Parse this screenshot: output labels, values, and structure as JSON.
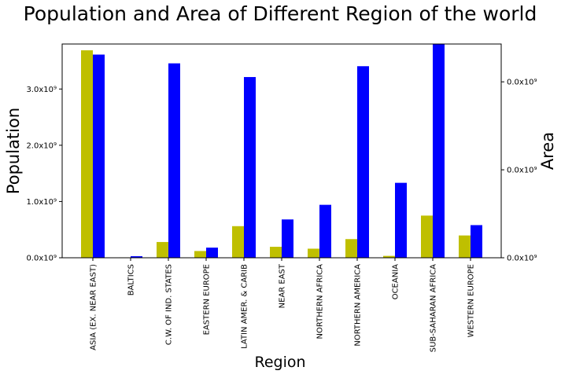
{
  "chart_data": {
    "type": "bar",
    "title": "Population and Area of Different Region of the world",
    "xlabel": "Region",
    "ylabel_left": "Population",
    "ylabel_right": "Area",
    "categories": [
      "ASIA (EX. NEAR EAST)",
      "BALTICS",
      "C.W. OF IND. STATES",
      "EASTERN EUROPE",
      "LATIN AMER. & CARIB",
      "NEAR EAST",
      "NORTHERN AFRICA",
      "NORTHERN AMERICA",
      "OCEANIA",
      "SUB-SAHARAN AFRICA",
      "WESTERN EUROPE"
    ],
    "series": [
      {
        "name": "Population",
        "axis": "left",
        "color": "#bfbf00",
        "values": [
          3687982236,
          7184974,
          280081548,
          119914717,
          561824599,
          195068377,
          161407133,
          331672307,
          33131662,
          749437000,
          396339998
        ]
      },
      {
        "name": "Area",
        "axis": "right",
        "color": "#0000ff",
        "values": [
          23096712,
          175015,
          22100843,
          1152222,
          20544084,
          4355586,
          6018890,
          21776070,
          8519812,
          24341406,
          3710993
        ]
      }
    ],
    "left_axis": {
      "ylim": [
        0,
        3800000000
      ],
      "ticks": [
        0,
        1000000000,
        2000000000,
        3000000000
      ],
      "tick_labels": [
        "0.0x10⁹",
        "1.0x10⁹",
        "2.0x10⁹",
        "3.0x10⁹"
      ]
    },
    "right_axis": {
      "ylim": [
        0,
        24300000
      ],
      "ticks": [
        0,
        10000000,
        20000000
      ],
      "tick_labels": [
        "0.0x10⁹",
        "0.0x10⁹",
        "0.0x10⁹"
      ]
    },
    "grid": false,
    "legend": "none"
  }
}
